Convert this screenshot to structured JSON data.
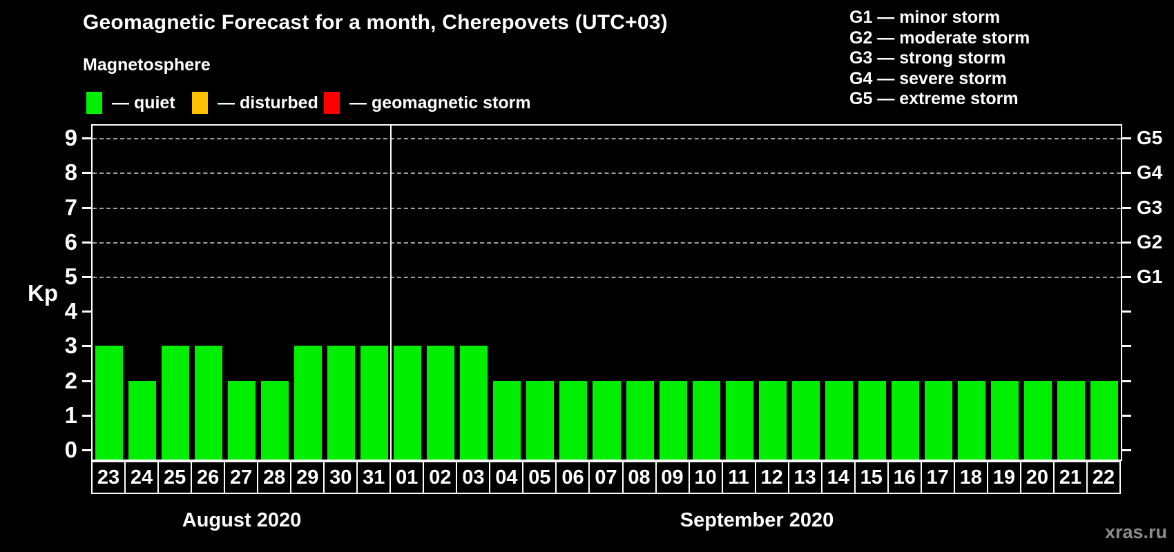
{
  "title": "Geomagnetic Forecast for a month, Cherepovets (UTC+03)",
  "legend": {
    "title": "Magnetosphere",
    "items": [
      {
        "label": "— quiet",
        "color": "#00ee00"
      },
      {
        "label": "— disturbed",
        "color": "#ffc000"
      },
      {
        "label": "— geomagnetic storm",
        "color": "#ff0000"
      }
    ]
  },
  "storm_scale": [
    "G1 — minor storm",
    "G2 — moderate storm",
    "G3 — strong storm",
    "G4 — severe storm",
    "G5 — extreme storm"
  ],
  "axis": {
    "left_title": "Kp",
    "left_ticks": [
      9,
      8,
      7,
      6,
      5,
      4,
      3,
      2,
      1,
      0
    ]
  },
  "watermark": "xras.ru",
  "chart_data": {
    "type": "bar",
    "title": "Geomagnetic Forecast for a month, Cherepovets (UTC+03)",
    "ylabel": "Kp",
    "ylim": [
      0,
      9.4
    ],
    "yticks": [
      0,
      1,
      2,
      3,
      4,
      5,
      6,
      7,
      8,
      9
    ],
    "grid": "dashed horizontal lines at Kp 5-9 only",
    "gridlines_at_kp": [
      5,
      6,
      7,
      8,
      9
    ],
    "right_axis": [
      {
        "kp": 9,
        "label": "G5"
      },
      {
        "kp": 8,
        "label": "G4"
      },
      {
        "kp": 7,
        "label": "G3"
      },
      {
        "kp": 6,
        "label": "G2"
      },
      {
        "kp": 5,
        "label": "G1"
      }
    ],
    "status_colors": {
      "quiet": "#00ee00",
      "disturbed": "#ffc000",
      "storm": "#ff0000"
    },
    "status_rules": {
      "quiet": "Kp < 4",
      "disturbed": "Kp = 4",
      "storm": "Kp >= 5"
    },
    "series": [
      {
        "name": "August 2020",
        "days": [
          "23",
          "24",
          "25",
          "26",
          "27",
          "28",
          "29",
          "30",
          "31"
        ],
        "values": [
          3,
          2,
          3,
          3,
          2,
          2,
          3,
          3,
          3
        ]
      },
      {
        "name": "September 2020",
        "days": [
          "01",
          "02",
          "03",
          "04",
          "05",
          "06",
          "07",
          "08",
          "09",
          "10",
          "11",
          "12",
          "13",
          "14",
          "15",
          "16",
          "17",
          "18",
          "19",
          "20",
          "21",
          "22"
        ],
        "values": [
          3,
          3,
          3,
          2,
          2,
          2,
          2,
          2,
          2,
          2,
          2,
          2,
          2,
          2,
          2,
          2,
          2,
          2,
          2,
          2,
          2,
          2
        ]
      }
    ]
  }
}
